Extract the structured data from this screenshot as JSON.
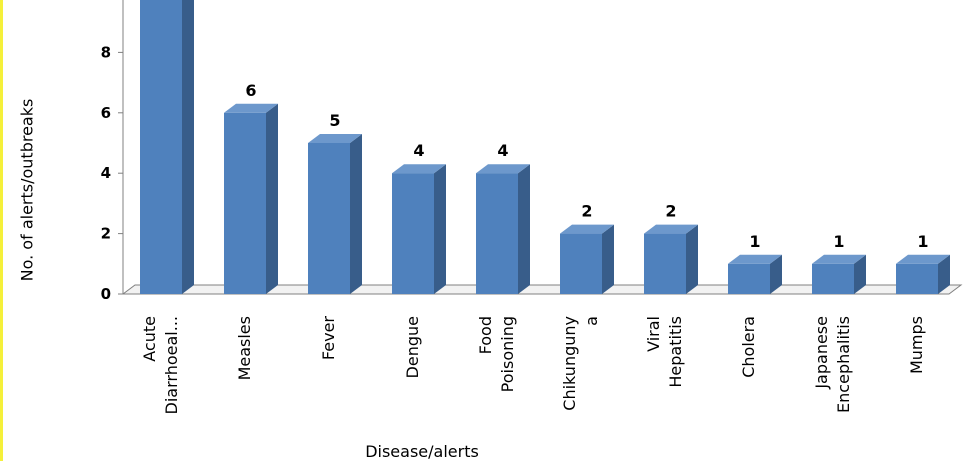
{
  "chart_data": {
    "type": "bar",
    "title": "",
    "xlabel": "Disease/alerts",
    "ylabel": "No. of alerts/outbreaks",
    "ylim": [
      0,
      10
    ],
    "yticks": [
      0,
      2,
      4,
      6,
      8
    ],
    "categories": [
      [
        "Acute",
        "Diarrhoeal..."
      ],
      [
        "Measles"
      ],
      [
        "Fever"
      ],
      [
        "Dengue"
      ],
      [
        "Food",
        "Poisoning"
      ],
      [
        "Chikunguny",
        "a"
      ],
      [
        "Viral",
        "Hepatitis"
      ],
      [
        "Cholera"
      ],
      [
        "Japanese",
        "Encephalitis"
      ],
      [
        "Mumps"
      ]
    ],
    "values": [
      10,
      6,
      5,
      4,
      4,
      2,
      2,
      1,
      1,
      1
    ],
    "data_labels": [
      "",
      "6",
      "5",
      "4",
      "4",
      "2",
      "2",
      "1",
      "1",
      "1"
    ],
    "grid": false,
    "legend": "none",
    "colors": {
      "bar_front": "#4f81bd",
      "bar_side": "#385d8a",
      "bar_top": "#6d98cc",
      "axis": "#808080"
    }
  }
}
